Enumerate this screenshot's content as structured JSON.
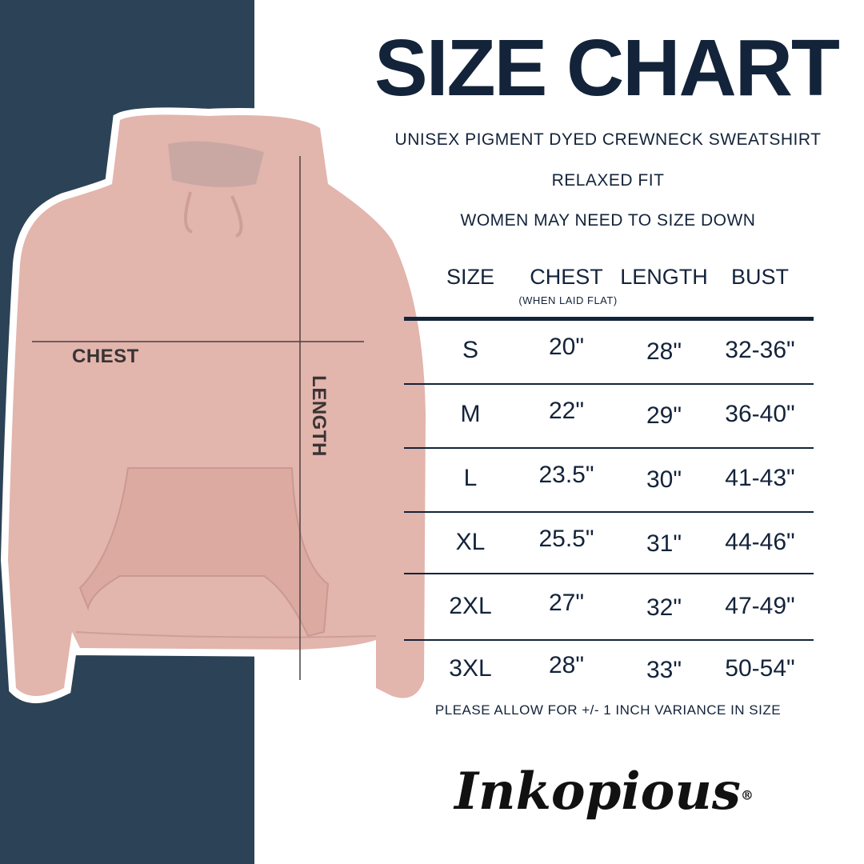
{
  "title": "SIZE CHART",
  "subtitle_lines": [
    "UNISEX PIGMENT DYED CREWNECK SWEATSHIRT",
    "RELAXED FIT",
    "WOMEN MAY NEED TO SIZE DOWN"
  ],
  "table": {
    "headers": [
      "SIZE",
      "CHEST",
      "LENGTH",
      "BUST"
    ],
    "chest_note": "(WHEN LAID FLAT)",
    "rows": [
      [
        "S",
        "20\"",
        "28\"",
        "32-36\""
      ],
      [
        "M",
        "22\"",
        "29\"",
        "36-40\""
      ],
      [
        "L",
        "23.5\"",
        "30\"",
        "41-43\""
      ],
      [
        "XL",
        "25.5\"",
        "31\"",
        "44-46\""
      ],
      [
        "2XL",
        "27\"",
        "32\"",
        "47-49\""
      ],
      [
        "3XL",
        "28\"",
        "33\"",
        "50-54\""
      ]
    ]
  },
  "footer_note": "PLEASE ALLOW FOR +/- 1 INCH VARIANCE IN SIZE",
  "diagram": {
    "chest_label": "CHEST",
    "length_label": "LENGTH"
  },
  "logo": {
    "text": "Inkopious",
    "mark": "®"
  },
  "colors": {
    "navy_panel": "#2c4256",
    "text": "#13233a",
    "hoodie": "#e2b5ad"
  }
}
